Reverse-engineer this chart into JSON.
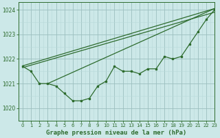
{
  "title": "Graphe pression niveau de la mer (hPa)",
  "xlim": [
    -0.5,
    23
  ],
  "ylim": [
    1019.5,
    1024.3
  ],
  "yticks": [
    1020,
    1021,
    1022,
    1023,
    1024
  ],
  "xticks": [
    0,
    1,
    2,
    3,
    4,
    5,
    6,
    7,
    8,
    9,
    10,
    11,
    12,
    13,
    14,
    15,
    16,
    17,
    18,
    19,
    20,
    21,
    22,
    23
  ],
  "bg_color": "#cce8e8",
  "grid_color_major": "#9bbfbf",
  "grid_color_minor": "#b8d8d8",
  "line_color": "#2d6b2d",
  "main_line": [
    1021.7,
    1021.5,
    1021.0,
    1021.0,
    1020.9,
    1020.6,
    1020.3,
    1020.3,
    1020.4,
    1020.9,
    1021.1,
    1021.7,
    1021.5,
    1021.5,
    1021.4,
    1021.6,
    1021.6,
    1022.1,
    1022.0,
    1022.1,
    1022.6,
    1023.1,
    1023.6,
    1024.0
  ],
  "trend_line1": [
    [
      0,
      1021.72
    ],
    [
      23,
      1024.05
    ]
  ],
  "trend_line2": [
    [
      0,
      1021.65
    ],
    [
      23,
      1023.9
    ]
  ],
  "trend_line3": [
    [
      3,
      1021.0
    ],
    [
      23,
      1024.05
    ]
  ]
}
